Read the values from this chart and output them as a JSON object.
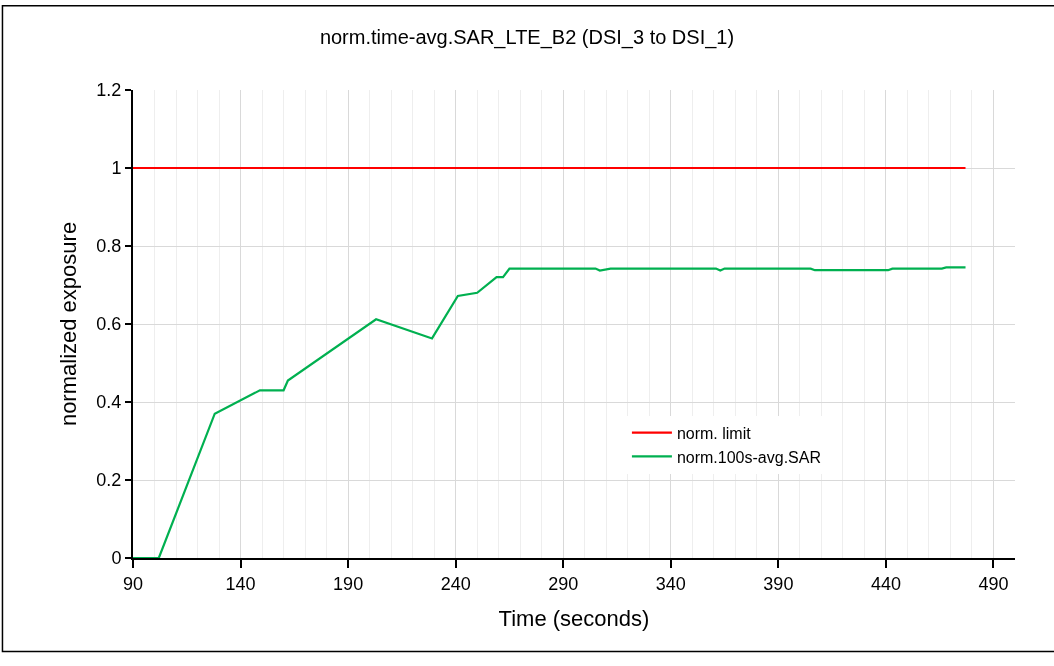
{
  "chart_data": {
    "type": "line",
    "title": "norm.time-avg.SAR_LTE_B2 (DSI_3 to DSI_1)",
    "xlabel": "Time (seconds)",
    "ylabel": "normalized exposure",
    "series": [
      {
        "name": "norm. limit",
        "color": "#ff0000",
        "x": [
          90,
          477
        ],
        "values": [
          1,
          1
        ]
      },
      {
        "name": "norm.100s-avg.SAR",
        "color": "#00b050",
        "x": [
          90,
          102,
          128,
          149,
          160,
          162,
          203,
          229,
          241,
          250,
          259,
          262,
          265,
          305,
          307,
          312,
          361,
          363,
          365,
          405,
          407,
          441,
          443,
          466,
          468,
          477
        ],
        "values": [
          0,
          0,
          0.37,
          0.43,
          0.43,
          0.455,
          0.612,
          0.563,
          0.672,
          0.68,
          0.72,
          0.72,
          0.742,
          0.742,
          0.737,
          0.742,
          0.742,
          0.737,
          0.742,
          0.742,
          0.738,
          0.738,
          0.742,
          0.742,
          0.745,
          0.745
        ]
      }
    ],
    "xlim": [
      90,
      500
    ],
    "ylim": [
      0,
      1.2
    ],
    "xticks": [
      90,
      {
        "value": 100,
        "label": null
      },
      {
        "value": 110,
        "label": null
      },
      {
        "value": 120,
        "label": null
      },
      {
        "value": 130,
        "label": null
      },
      140,
      {
        "value": 150,
        "label": null
      },
      {
        "value": 160,
        "label": null
      },
      {
        "value": 170,
        "label": null
      },
      {
        "value": 180,
        "label": null
      },
      190,
      {
        "value": 200,
        "label": null
      },
      {
        "value": 210,
        "label": null
      },
      {
        "value": 220,
        "label": null
      },
      {
        "value": 230,
        "label": null
      },
      240,
      {
        "value": 250,
        "label": null
      },
      {
        "value": 260,
        "label": null
      },
      {
        "value": 270,
        "label": null
      },
      {
        "value": 280,
        "label": null
      },
      290,
      {
        "value": 300,
        "label": null
      },
      {
        "value": 310,
        "label": null
      },
      {
        "value": 320,
        "label": null
      },
      {
        "value": 330,
        "label": null
      },
      340,
      {
        "value": 350,
        "label": null
      },
      {
        "value": 360,
        "label": null
      },
      {
        "value": 370,
        "label": null
      },
      {
        "value": 380,
        "label": null
      },
      390,
      {
        "value": 400,
        "label": null
      },
      {
        "value": 410,
        "label": null
      },
      {
        "value": 420,
        "label": null
      },
      {
        "value": 430,
        "label": null
      },
      440,
      {
        "value": 450,
        "label": null
      },
      {
        "value": 460,
        "label": null
      },
      {
        "value": 470,
        "label": null
      },
      {
        "value": 480,
        "label": null
      },
      490
    ],
    "yticks": [
      0,
      0.2,
      0.4,
      0.6,
      0.8,
      1,
      1.2
    ],
    "grid": true,
    "legend": "bottom right",
    "line_style": "solid",
    "marker": "none"
  }
}
